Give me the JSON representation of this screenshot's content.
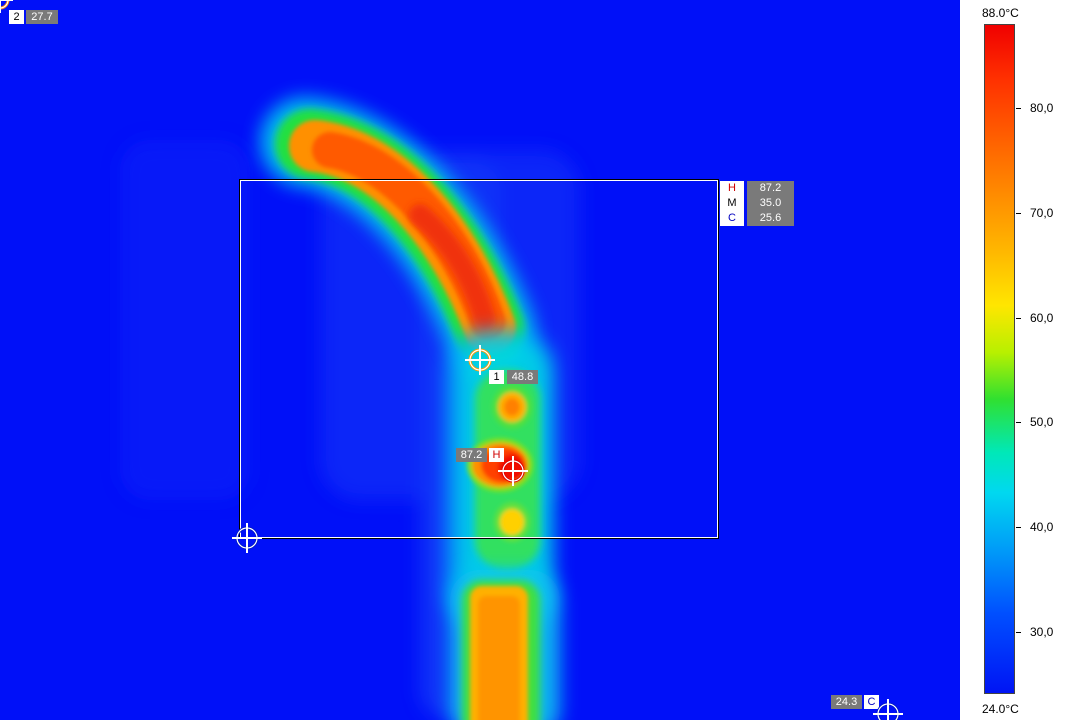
{
  "colors": {
    "background": "#0010f8",
    "hot": "#ff2000",
    "hot_marker": "#e00000",
    "cold_marker": "#0018c8"
  },
  "scale": {
    "max_label": "88.0°C",
    "min_label": "24.0°C",
    "ticks": [
      "80,0",
      "70,0",
      "60,0",
      "50,0",
      "40,0",
      "30,0"
    ]
  },
  "spot1": {
    "id": "1",
    "value": "48.8"
  },
  "spot2": {
    "id": "2",
    "value": "27.7"
  },
  "hot_spot": {
    "label": "H",
    "value": "87.2"
  },
  "cold_spot": {
    "label": "C",
    "value": "24.3"
  },
  "roi_stats": [
    {
      "key": "H",
      "value": "87.2",
      "color": "#d00000"
    },
    {
      "key": "M",
      "value": "35.0",
      "color": "#000000"
    },
    {
      "key": "C",
      "value": "25.6",
      "color": "#0000c0"
    }
  ],
  "icons": {
    "spot": "crosshair-icon"
  }
}
